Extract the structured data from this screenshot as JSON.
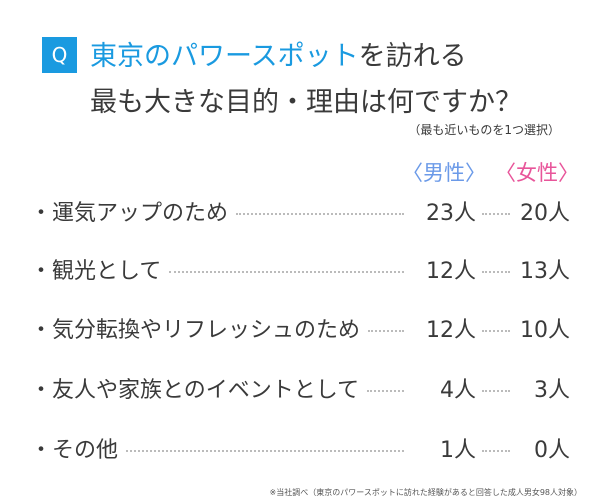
{
  "question": {
    "badge": "Q",
    "title_highlight": "東京のパワースポット",
    "title_rest": "を訪れる",
    "title_line2": "最も大きな目的・理由は何ですか？",
    "note": "（最も近いものを1つ選択）"
  },
  "headers": {
    "male": "〈男性〉",
    "female": "〈女性〉"
  },
  "colors": {
    "accent": "#1a9ae0",
    "male": "#6b9ae8",
    "female": "#e8559a"
  },
  "rows": [
    {
      "label": "・運気アップのため",
      "male": "23人",
      "female": "20人"
    },
    {
      "label": "・観光として",
      "male": "12人",
      "female": "13人"
    },
    {
      "label": "・気分転換やリフレッシュのため",
      "male": "12人",
      "female": "10人"
    },
    {
      "label": "・友人や家族とのイベントとして",
      "male": "4人",
      "female": "3人"
    },
    {
      "label": "・その他",
      "male": "1人",
      "female": "0人"
    }
  ],
  "footnote": "※当社調べ（東京のパワースポットに訪れた経験があると回答した成人男女98人対象）"
}
